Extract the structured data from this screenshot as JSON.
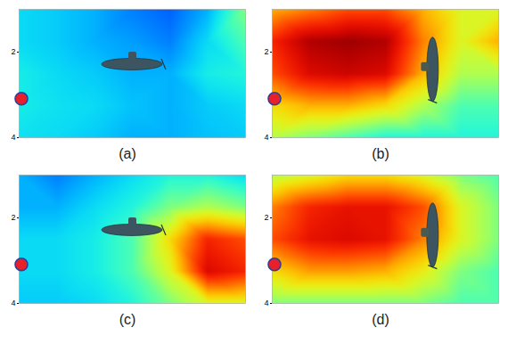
{
  "chart_data": [
    {
      "type": "heatmap",
      "title": "(a)",
      "x": [
        0,
        1,
        2,
        3,
        4,
        5,
        6
      ],
      "y": [
        1,
        1.75,
        2.5,
        3.25,
        4
      ],
      "cells": [
        [
          0.35,
          0.33,
          0.3,
          0.25,
          0.22,
          0.3,
          0.5
        ],
        [
          0.35,
          0.33,
          0.3,
          0.28,
          0.25,
          0.35,
          0.45
        ],
        [
          0.38,
          0.35,
          0.33,
          0.3,
          0.3,
          0.38,
          0.4
        ],
        [
          0.38,
          0.36,
          0.35,
          0.32,
          0.3,
          0.33,
          0.35
        ],
        [
          0.36,
          0.35,
          0.33,
          0.3,
          0.3,
          0.32,
          0.33
        ]
      ],
      "xlim": [
        0,
        6
      ],
      "ylim": [
        1,
        4
      ],
      "yticks": [
        2,
        4
      ],
      "color": "jet",
      "color_range": [
        0,
        1
      ],
      "tick_labels": "y"
    },
    {
      "type": "heatmap",
      "title": "(b)",
      "x": [
        0,
        1,
        2,
        3,
        4,
        5,
        6
      ],
      "y": [
        1,
        1.75,
        2.5,
        3.25,
        4
      ],
      "cells": [
        [
          0.7,
          0.75,
          0.8,
          0.8,
          0.7,
          0.6,
          0.6
        ],
        [
          0.85,
          0.95,
          0.97,
          0.95,
          0.75,
          0.6,
          0.7
        ],
        [
          0.8,
          0.9,
          0.92,
          0.9,
          0.7,
          0.55,
          0.55
        ],
        [
          0.65,
          0.7,
          0.7,
          0.65,
          0.55,
          0.45,
          0.45
        ],
        [
          0.55,
          0.5,
          0.45,
          0.4,
          0.4,
          0.4,
          0.4
        ]
      ],
      "xlim": [
        0,
        6
      ],
      "ylim": [
        1,
        4
      ],
      "yticks": [
        2,
        4
      ],
      "color": "jet",
      "color_range": [
        0,
        1
      ],
      "tick_labels": "y"
    },
    {
      "type": "heatmap",
      "title": "(c)",
      "x": [
        0,
        1,
        2,
        3,
        4,
        5,
        6
      ],
      "y": [
        1,
        1.75,
        2.5,
        3.25,
        4
      ],
      "cells": [
        [
          0.3,
          0.25,
          0.3,
          0.35,
          0.4,
          0.4,
          0.35
        ],
        [
          0.3,
          0.3,
          0.35,
          0.4,
          0.5,
          0.55,
          0.5
        ],
        [
          0.35,
          0.35,
          0.38,
          0.45,
          0.65,
          0.85,
          0.8
        ],
        [
          0.35,
          0.35,
          0.38,
          0.45,
          0.6,
          0.9,
          0.85
        ],
        [
          0.33,
          0.33,
          0.35,
          0.4,
          0.5,
          0.6,
          0.6
        ]
      ],
      "xlim": [
        0,
        6
      ],
      "ylim": [
        1,
        4
      ],
      "yticks": [
        2,
        4
      ],
      "color": "jet",
      "color_range": [
        0,
        1
      ],
      "tick_labels": "y"
    },
    {
      "type": "heatmap",
      "title": "(d)",
      "x": [
        0,
        1,
        2,
        3,
        4,
        5,
        6
      ],
      "y": [
        1,
        1.75,
        2.5,
        3.25,
        4
      ],
      "cells": [
        [
          0.55,
          0.6,
          0.65,
          0.65,
          0.6,
          0.5,
          0.45
        ],
        [
          0.75,
          0.85,
          0.88,
          0.88,
          0.8,
          0.6,
          0.5
        ],
        [
          0.8,
          0.88,
          0.9,
          0.88,
          0.75,
          0.6,
          0.5
        ],
        [
          0.65,
          0.72,
          0.72,
          0.7,
          0.62,
          0.5,
          0.45
        ],
        [
          0.5,
          0.5,
          0.5,
          0.5,
          0.5,
          0.45,
          0.45
        ]
      ],
      "xlim": [
        0,
        6
      ],
      "ylim": [
        1,
        4
      ],
      "yticks": [
        2,
        4
      ],
      "color": "jet",
      "color_range": [
        0,
        1
      ],
      "tick_labels": "y"
    }
  ]
}
